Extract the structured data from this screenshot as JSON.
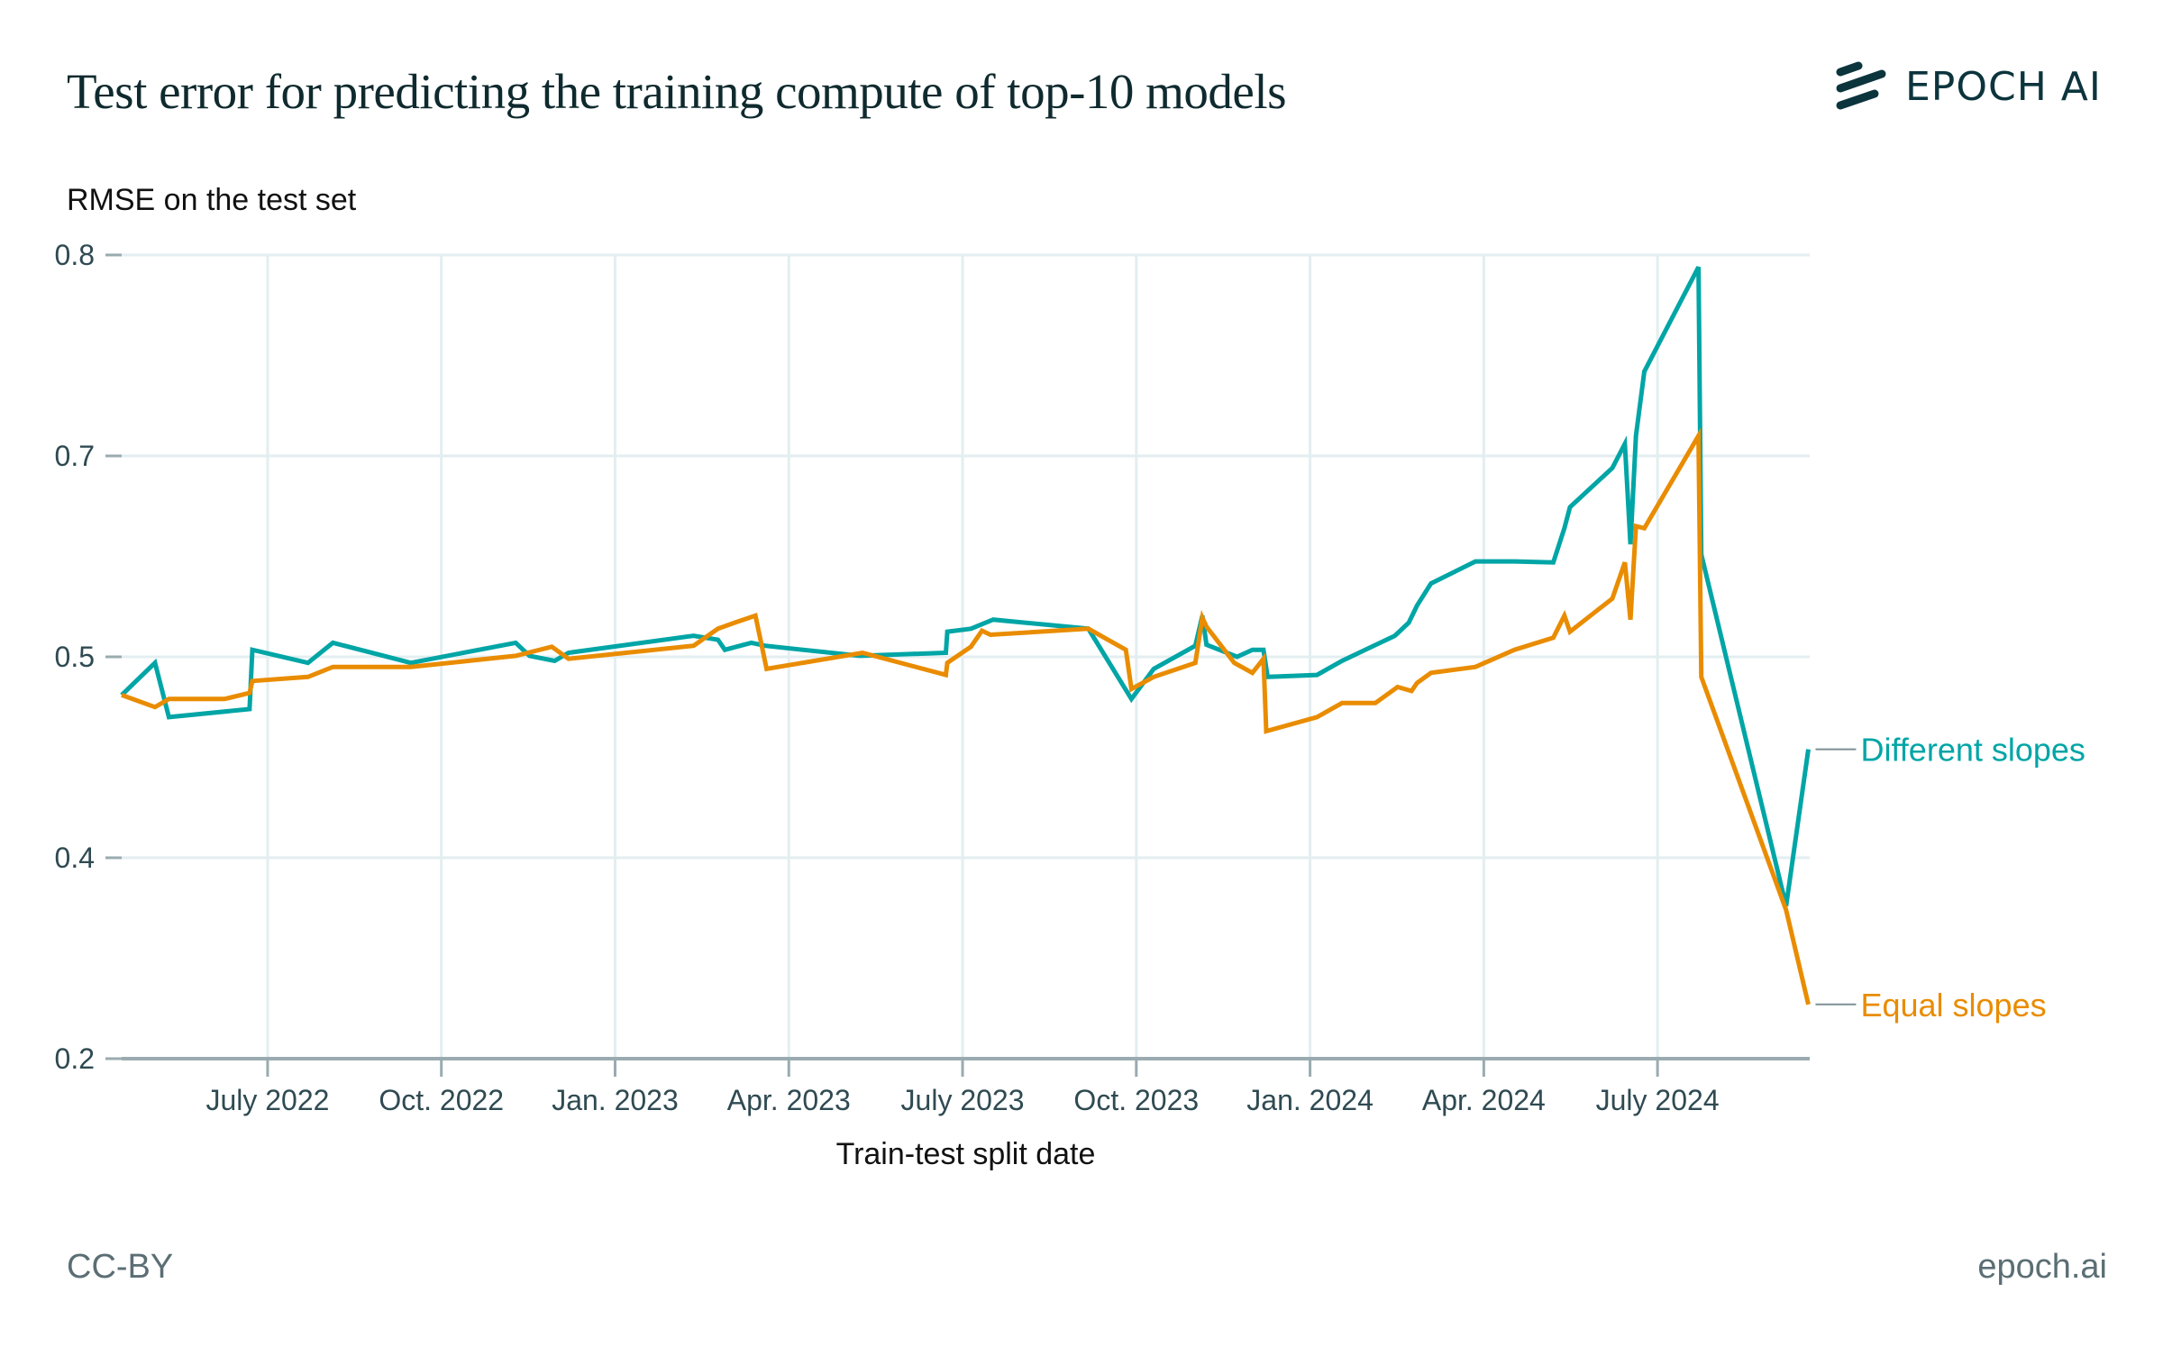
{
  "header": {
    "title": "Test error for predicting the training compute of top-10 models",
    "logo_text": "EPOCH AI"
  },
  "footer": {
    "license": "CC-BY",
    "site": "epoch.ai"
  },
  "colors": {
    "different_slopes": "#00a5a6",
    "equal_slopes": "#e98c00",
    "grid": "#e3eef0",
    "axis": "#9aabb0",
    "logo": "#0c343d"
  },
  "chart_data": {
    "type": "line",
    "title": "Test error for predicting the training compute of top-10 models",
    "xlabel": "Train-test split date",
    "ylabel": "RMSE on the test set",
    "x_unit": "fractional year",
    "xlim": [
      2022.29,
      2024.719
    ],
    "x_ticks": [
      {
        "value": 2022.5,
        "label": "July 2022"
      },
      {
        "value": 2022.75,
        "label": "Oct. 2022"
      },
      {
        "value": 2023.0,
        "label": "Jan. 2023"
      },
      {
        "value": 2023.25,
        "label": "Apr. 2023"
      },
      {
        "value": 2023.5,
        "label": "July 2023"
      },
      {
        "value": 2023.75,
        "label": "Oct. 2023"
      },
      {
        "value": 2024.0,
        "label": "Jan. 2024"
      },
      {
        "value": 2024.25,
        "label": "Apr. 2024"
      },
      {
        "value": 2024.5,
        "label": "July 2024"
      }
    ],
    "y_ticks": [
      {
        "value": 0.8,
        "label": "0.8"
      },
      {
        "value": 0.7,
        "label": "0.7"
      },
      {
        "value": 0.5,
        "label": "0.5"
      },
      {
        "value": 0.4,
        "label": "0.4"
      },
      {
        "value": 0.2,
        "label": "0.2"
      }
    ],
    "y_scale_note": "tick labels are evenly spaced; values interpolated piecewise between ticks",
    "ylim": [
      0.2,
      0.8
    ],
    "grid": true,
    "legend": "direct labels at right end of lines",
    "series": [
      {
        "name": "Different slopes",
        "color": "#00a5a6",
        "x": [
          2022.29,
          2022.338,
          2022.358,
          2022.474,
          2022.478,
          2022.558,
          2022.594,
          2022.706,
          2022.857,
          2022.877,
          2022.913,
          2022.933,
          2023.113,
          2023.148,
          2023.158,
          2023.196,
          2023.216,
          2023.352,
          2023.476,
          2023.478,
          2023.512,
          2023.544,
          2023.681,
          2023.743,
          2023.775,
          2023.835,
          2023.845,
          2023.851,
          2023.895,
          2023.917,
          2023.933,
          2023.939,
          2024.01,
          2024.046,
          2024.122,
          2024.142,
          2024.154,
          2024.174,
          2024.238,
          2024.294,
          2024.35,
          2024.366,
          2024.374,
          2024.435,
          2024.453,
          2024.461,
          2024.469,
          2024.481,
          2024.559,
          2024.563,
          2024.685,
          2024.717
        ],
        "y": [
          0.481,
          0.497,
          0.47,
          0.474,
          0.507,
          0.497,
          0.514,
          0.497,
          0.514,
          0.501,
          0.498,
          0.504,
          0.521,
          0.517,
          0.507,
          0.514,
          0.511,
          0.501,
          0.504,
          0.525,
          0.528,
          0.537,
          0.528,
          0.479,
          0.494,
          0.511,
          0.541,
          0.512,
          0.5,
          0.507,
          0.507,
          0.49,
          0.491,
          0.498,
          0.521,
          0.534,
          0.551,
          0.573,
          0.595,
          0.595,
          0.594,
          0.628,
          0.649,
          0.688,
          0.706,
          0.612,
          0.71,
          0.742,
          0.794,
          0.602,
          0.352,
          0.454
        ]
      },
      {
        "name": "Equal slopes",
        "color": "#e98c00",
        "x": [
          2022.29,
          2022.338,
          2022.358,
          2022.438,
          2022.474,
          2022.478,
          2022.558,
          2022.594,
          2022.706,
          2022.857,
          2022.909,
          2022.933,
          2023.113,
          2023.148,
          2023.172,
          2023.202,
          2023.218,
          2023.356,
          2023.476,
          2023.478,
          2023.512,
          2023.528,
          2023.54,
          2023.681,
          2023.735,
          2023.743,
          2023.775,
          2023.835,
          2023.845,
          2023.851,
          2023.891,
          2023.917,
          2023.933,
          2023.937,
          2024.01,
          2024.046,
          2024.094,
          2024.126,
          2024.146,
          2024.154,
          2024.174,
          2024.238,
          2024.294,
          2024.35,
          2024.366,
          2024.374,
          2024.435,
          2024.453,
          2024.461,
          2024.469,
          2024.481,
          2024.559,
          2024.563,
          2024.685,
          2024.717
        ],
        "y": [
          0.481,
          0.475,
          0.479,
          0.479,
          0.482,
          0.488,
          0.49,
          0.495,
          0.495,
          0.501,
          0.51,
          0.499,
          0.511,
          0.528,
          0.534,
          0.541,
          0.494,
          0.504,
          0.491,
          0.497,
          0.51,
          0.526,
          0.522,
          0.528,
          0.507,
          0.484,
          0.49,
          0.497,
          0.539,
          0.53,
          0.497,
          0.492,
          0.499,
          0.463,
          0.47,
          0.477,
          0.477,
          0.485,
          0.483,
          0.487,
          0.492,
          0.495,
          0.507,
          0.519,
          0.541,
          0.525,
          0.558,
          0.594,
          0.537,
          0.63,
          0.628,
          0.71,
          0.49,
          0.348,
          0.254
        ]
      }
    ]
  }
}
